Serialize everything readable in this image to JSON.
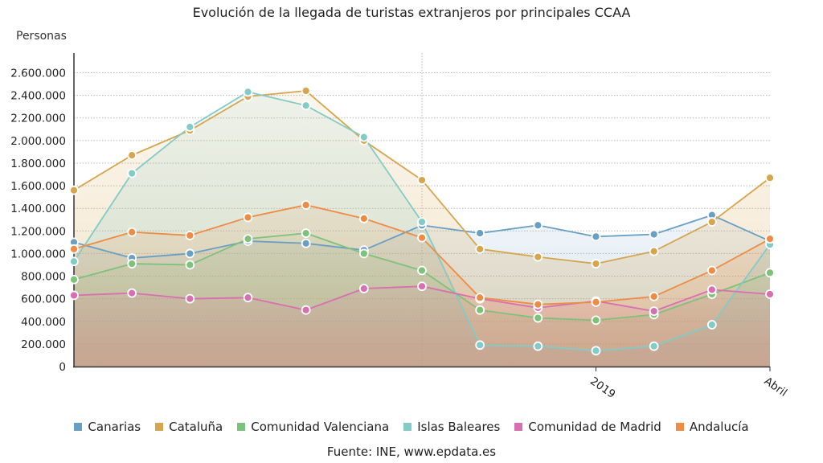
{
  "chart_data": {
    "type": "line",
    "title": "Evolución de la llegada de turistas extranjeros por principales CCAA",
    "ylabel": "Personas",
    "xlabel": "",
    "ylim": [
      0,
      2600000
    ],
    "yticks": [
      0,
      200000,
      400000,
      600000,
      800000,
      1000000,
      1200000,
      1400000,
      1600000,
      1800000,
      2000000,
      2200000,
      2400000,
      2600000
    ],
    "ytick_labels": [
      "0",
      "200.000",
      "400.000",
      "600.000",
      "800.000",
      "1.000.000",
      "1.200.000",
      "1.400.000",
      "1.600.000",
      "1.800.000",
      "2.000.000",
      "2.200.000",
      "2.400.000",
      "2.600.000"
    ],
    "x_tick_labels": [
      {
        "index": 9,
        "label": "2019"
      },
      {
        "index": 12,
        "label": "Abril"
      }
    ],
    "grid": true,
    "legend_position": "bottom",
    "series": [
      {
        "name": "Canarias",
        "color": "#6a9fc4",
        "values": [
          1100000,
          960000,
          1000000,
          1110000,
          1090000,
          1030000,
          1250000,
          1180000,
          1250000,
          1150000,
          1170000,
          1340000,
          1110000
        ]
      },
      {
        "name": "Cataluña",
        "color": "#d6a54e",
        "values": [
          1560000,
          1870000,
          2090000,
          2390000,
          2440000,
          2000000,
          1650000,
          1040000,
          970000,
          910000,
          1020000,
          1280000,
          1670000
        ]
      },
      {
        "name": "Comunidad Valenciana",
        "color": "#7dc27a",
        "values": [
          770000,
          910000,
          900000,
          1130000,
          1180000,
          1000000,
          850000,
          500000,
          430000,
          410000,
          460000,
          640000,
          830000
        ]
      },
      {
        "name": "Islas Baleares",
        "color": "#82cbc6",
        "values": [
          930000,
          1710000,
          2120000,
          2430000,
          2310000,
          2030000,
          1280000,
          190000,
          180000,
          140000,
          180000,
          370000,
          1080000
        ]
      },
      {
        "name": "Comunidad de Madrid",
        "color": "#d86fb0",
        "values": [
          630000,
          650000,
          600000,
          610000,
          500000,
          690000,
          710000,
          600000,
          520000,
          580000,
          490000,
          680000,
          640000
        ]
      },
      {
        "name": "Andalucía",
        "color": "#ee8b45",
        "values": [
          1040000,
          1190000,
          1160000,
          1320000,
          1430000,
          1310000,
          1140000,
          610000,
          550000,
          570000,
          620000,
          850000,
          1130000
        ]
      }
    ]
  },
  "source": "Fuente: INE, www.epdata.es"
}
